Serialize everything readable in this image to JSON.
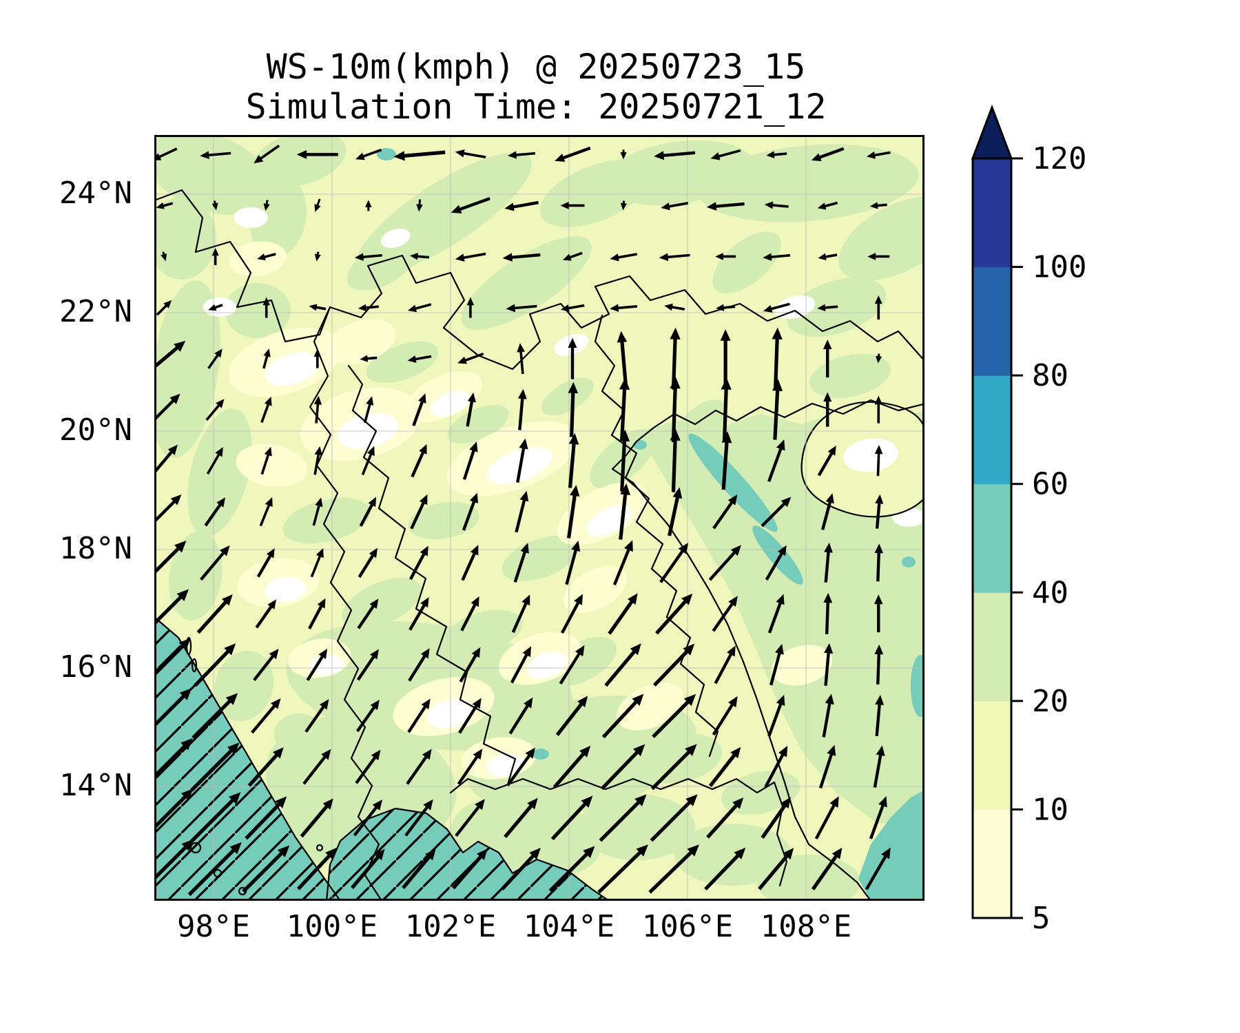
{
  "header": {
    "title_line1": "WS-10m(kmph) @ 20250723_15",
    "title_line2": "Simulation Time: 20250721_12"
  },
  "chart_data": {
    "type": "heatmap",
    "subtype": "filled-contour-map-with-quiver",
    "variable": "WS-10m",
    "units": "kmph",
    "valid_time": "20250723_15",
    "simulation_time": "20250721_12",
    "lon_range": [
      97.0,
      110.0
    ],
    "lat_range": [
      12.07,
      25.0
    ],
    "grid_lines": "on",
    "x_ticks": [
      {
        "value": 98,
        "label": "98°E"
      },
      {
        "value": 100,
        "label": "100°E"
      },
      {
        "value": 102,
        "label": "102°E"
      },
      {
        "value": 104,
        "label": "104°E"
      },
      {
        "value": 106,
        "label": "106°E"
      },
      {
        "value": 108,
        "label": "108°E"
      }
    ],
    "y_ticks": [
      {
        "value": 24,
        "label": "24°N"
      },
      {
        "value": 22,
        "label": "22°N"
      },
      {
        "value": 20,
        "label": "20°N"
      },
      {
        "value": 18,
        "label": "18°N"
      },
      {
        "value": 16,
        "label": "16°N"
      },
      {
        "value": 14,
        "label": "14°N"
      }
    ],
    "colorbar": {
      "orientation": "vertical",
      "extend": "max",
      "levels": [
        5,
        10,
        20,
        40,
        60,
        80,
        100,
        120
      ],
      "labels": [
        "5",
        "10",
        "20",
        "40",
        "60",
        "80",
        "100",
        "120"
      ],
      "segment_colors": [
        "#fdfed6",
        "#f0f8b5",
        "#d3ecb4",
        "#76ccba",
        "#31a8c5",
        "#2663a9",
        "#263795"
      ],
      "over_color": "#0b1e5a"
    },
    "fill_palette": {
      "below_5": "#ffffff",
      "5_10": "#fdfed2",
      "10_20_base": "#f0f7bd",
      "20_40": "#d3ecb4",
      "40_60": "#76ccba",
      "60_80": "#31a8c5"
    },
    "hatched_regions": [
      "Andaman Sea (southwest corner, 40-60 kmph)",
      "Gulf of Thailand (bottom, 40-60 kmph)"
    ],
    "high_wind_areas": [
      "Gulf of Tonkin 20-40 kmph northward flow",
      "Andaman Sea 40-60 kmph southwesterly",
      "Gulf of Thailand 40-60 kmph southwesterly"
    ],
    "arrow_grid": {
      "format": [
        "angle_deg_math_ccw_from_east",
        "length_px"
      ],
      "lon0": 97.17,
      "dlon": 0.861,
      "lat0": 24.67,
      "dlat": 0.861,
      "rows": [
        [
          [
            205,
            40
          ],
          [
            185,
            45
          ],
          [
            215,
            45
          ],
          [
            180,
            60
          ],
          [
            200,
            40
          ],
          [
            185,
            75
          ],
          [
            170,
            45
          ],
          [
            185,
            40
          ],
          [
            200,
            55
          ],
          [
            270,
            14
          ],
          [
            185,
            60
          ],
          [
            195,
            45
          ],
          [
            185,
            30
          ],
          [
            200,
            50
          ],
          [
            190,
            35
          ]
        ],
        [
          [
            195,
            25
          ],
          [
            280,
            14
          ],
          [
            260,
            16
          ],
          [
            250,
            20
          ],
          [
            90,
            16
          ],
          [
            265,
            18
          ],
          [
            200,
            60
          ],
          [
            190,
            50
          ],
          [
            180,
            35
          ],
          [
            265,
            14
          ],
          [
            190,
            40
          ],
          [
            185,
            55
          ],
          [
            175,
            35
          ],
          [
            195,
            30
          ],
          [
            185,
            25
          ]
        ],
        [
          [
            285,
            14
          ],
          [
            90,
            25
          ],
          [
            195,
            28
          ],
          [
            260,
            14
          ],
          [
            185,
            40
          ],
          [
            175,
            28
          ],
          [
            190,
            45
          ],
          [
            185,
            55
          ],
          [
            200,
            30
          ],
          [
            190,
            40
          ],
          [
            185,
            45
          ],
          [
            180,
            30
          ],
          [
            185,
            40
          ],
          [
            190,
            28
          ],
          [
            180,
            32
          ]
        ],
        [
          [
            45,
            30
          ],
          [
            200,
            22
          ],
          [
            90,
            30
          ],
          [
            170,
            25
          ],
          [
            185,
            30
          ],
          [
            195,
            35
          ],
          [
            90,
            30
          ],
          [
            185,
            45
          ],
          [
            190,
            35
          ],
          [
            185,
            40
          ],
          [
            170,
            30
          ],
          [
            185,
            28
          ],
          [
            195,
            40
          ],
          [
            185,
            30
          ],
          [
            90,
            35
          ]
        ],
        [
          [
            40,
            80
          ],
          [
            55,
            35
          ],
          [
            75,
            30
          ],
          [
            90,
            28
          ],
          [
            185,
            25
          ],
          [
            190,
            35
          ],
          [
            200,
            40
          ],
          [
            95,
            45
          ],
          [
            90,
            60
          ],
          [
            95,
            80
          ],
          [
            88,
            90
          ],
          [
            90,
            85
          ],
          [
            88,
            90
          ],
          [
            90,
            55
          ],
          [
            265,
            14
          ]
        ],
        [
          [
            45,
            65
          ],
          [
            50,
            40
          ],
          [
            70,
            40
          ],
          [
            85,
            40
          ],
          [
            75,
            40
          ],
          [
            70,
            50
          ],
          [
            80,
            50
          ],
          [
            85,
            60
          ],
          [
            88,
            80
          ],
          [
            87,
            92
          ],
          [
            88,
            95
          ],
          [
            88,
            92
          ],
          [
            87,
            88
          ],
          [
            90,
            50
          ],
          [
            90,
            40
          ]
        ],
        [
          [
            50,
            60
          ],
          [
            60,
            45
          ],
          [
            72,
            42
          ],
          [
            80,
            42
          ],
          [
            68,
            45
          ],
          [
            66,
            52
          ],
          [
            72,
            58
          ],
          [
            80,
            65
          ],
          [
            85,
            80
          ],
          [
            87,
            90
          ],
          [
            88,
            92
          ],
          [
            86,
            85
          ],
          [
            70,
            65
          ],
          [
            60,
            50
          ],
          [
            88,
            45
          ]
        ],
        [
          [
            45,
            70
          ],
          [
            55,
            50
          ],
          [
            68,
            45
          ],
          [
            75,
            42
          ],
          [
            62,
            48
          ],
          [
            65,
            55
          ],
          [
            70,
            58
          ],
          [
            76,
            62
          ],
          [
            82,
            78
          ],
          [
            84,
            82
          ],
          [
            78,
            72
          ],
          [
            55,
            60
          ],
          [
            45,
            60
          ],
          [
            75,
            55
          ],
          [
            85,
            50
          ]
        ],
        [
          [
            45,
            90
          ],
          [
            50,
            65
          ],
          [
            60,
            48
          ],
          [
            68,
            45
          ],
          [
            58,
            50
          ],
          [
            62,
            55
          ],
          [
            66,
            56
          ],
          [
            72,
            60
          ],
          [
            75,
            66
          ],
          [
            68,
            70
          ],
          [
            55,
            70
          ],
          [
            48,
            68
          ],
          [
            60,
            58
          ],
          [
            85,
            58
          ],
          [
            88,
            55
          ]
        ],
        [
          [
            45,
            100
          ],
          [
            48,
            75
          ],
          [
            55,
            50
          ],
          [
            62,
            50
          ],
          [
            56,
            52
          ],
          [
            60,
            55
          ],
          [
            63,
            56
          ],
          [
            66,
            60
          ],
          [
            62,
            64
          ],
          [
            55,
            72
          ],
          [
            48,
            78
          ],
          [
            55,
            62
          ],
          [
            70,
            60
          ],
          [
            88,
            60
          ],
          [
            90,
            55
          ]
        ],
        [
          [
            45,
            108
          ],
          [
            46,
            85
          ],
          [
            52,
            58
          ],
          [
            58,
            54
          ],
          [
            56,
            54
          ],
          [
            58,
            56
          ],
          [
            60,
            58
          ],
          [
            62,
            60
          ],
          [
            58,
            66
          ],
          [
            50,
            80
          ],
          [
            46,
            84
          ],
          [
            62,
            62
          ],
          [
            75,
            62
          ],
          [
            85,
            62
          ],
          [
            88,
            58
          ]
        ],
        [
          [
            45,
            112
          ],
          [
            45,
            92
          ],
          [
            50,
            65
          ],
          [
            55,
            58
          ],
          [
            55,
            56
          ],
          [
            57,
            58
          ],
          [
            58,
            60
          ],
          [
            58,
            62
          ],
          [
            52,
            72
          ],
          [
            47,
            86
          ],
          [
            45,
            88
          ],
          [
            58,
            66
          ],
          [
            70,
            64
          ],
          [
            80,
            64
          ],
          [
            85,
            60
          ]
        ],
        [
          [
            45,
            116
          ],
          [
            45,
            98
          ],
          [
            48,
            75
          ],
          [
            52,
            64
          ],
          [
            54,
            60
          ],
          [
            55,
            62
          ],
          [
            56,
            62
          ],
          [
            54,
            68
          ],
          [
            49,
            80
          ],
          [
            46,
            90
          ],
          [
            45,
            92
          ],
          [
            52,
            72
          ],
          [
            62,
            68
          ],
          [
            72,
            66
          ],
          [
            80,
            62
          ]
        ],
        [
          [
            45,
            118
          ],
          [
            45,
            104
          ],
          [
            46,
            85
          ],
          [
            50,
            72
          ],
          [
            52,
            66
          ],
          [
            53,
            66
          ],
          [
            52,
            68
          ],
          [
            50,
            74
          ],
          [
            47,
            86
          ],
          [
            45,
            95
          ],
          [
            45,
            95
          ],
          [
            48,
            78
          ],
          [
            55,
            72
          ],
          [
            62,
            70
          ],
          [
            70,
            66
          ]
        ],
        [
          [
            45,
            120
          ],
          [
            45,
            108
          ],
          [
            45,
            95
          ],
          [
            47,
            82
          ],
          [
            50,
            74
          ],
          [
            50,
            74
          ],
          [
            49,
            76
          ],
          [
            47,
            82
          ],
          [
            45,
            92
          ],
          [
            44,
            100
          ],
          [
            44,
            100
          ],
          [
            46,
            84
          ],
          [
            50,
            78
          ],
          [
            55,
            74
          ],
          [
            60,
            70
          ]
        ]
      ]
    }
  }
}
